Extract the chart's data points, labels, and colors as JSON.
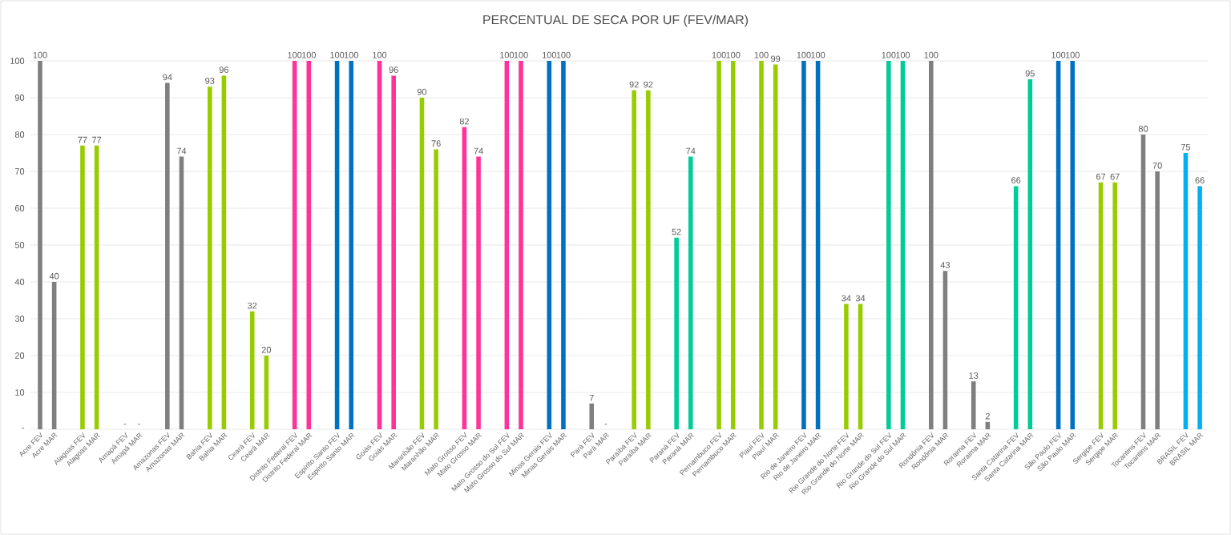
{
  "chart_data": {
    "type": "bar",
    "title": "PERCENTUAL DE SECA POR UF (FEV/MAR)",
    "categories": [
      "Acre FEV",
      "Acre MAR",
      null,
      "Alagoas FEV",
      "Alagoas MAR",
      null,
      "Amapá FEV",
      "Amapá MAR",
      null,
      "Amazonas FEV",
      "Amazonas MAR",
      null,
      "Bahia FEV",
      "Bahia MAR",
      null,
      "Ceará FEV",
      "Ceará MAR",
      null,
      "Distrito Federal FEV",
      "Distrito Federal MAR",
      null,
      "Espírito Santo FEV",
      "Espírito Santo MAR",
      null,
      "Goiás FEV",
      "Goiás MAR",
      null,
      "Maranhão FEV",
      "Maranhão MAR",
      null,
      "Mato Grosso FEV",
      "Mato Grosso MAR",
      null,
      "Mato Grosso do Sul FEV",
      "Mato Grosso do Sul MAR",
      null,
      "Minas Gerais FEV",
      "Minas Gerais MAR",
      null,
      "Pará FEV",
      "Pará MAR",
      null,
      "Paraíba FEV",
      "Paraíba MAR",
      null,
      "Paraná FEV",
      "Paraná MAR",
      null,
      "Pernambuco FEV",
      "Pernambuco MAR",
      null,
      "Piauí FEV",
      "Piauí MAR",
      null,
      "Rio de Janeiro FEV",
      "Rio de Janeiro MAR",
      null,
      "Rio Grande do Norte FEV",
      "Rio Grande do Norte MAR",
      null,
      "Rio Grande do Sul FEV",
      "Rio Grande do Sul MAR",
      null,
      "Rondônia FEV",
      "Rondônia MAR",
      null,
      "Roraima FEV",
      "Roraima MAR",
      null,
      "Santa Catarina FEV",
      "Santa Catarina MAR",
      null,
      "São Paulo FEV",
      "São Paulo MAR",
      null,
      "Sergipe FEV",
      "Sergipe MAR",
      null,
      "Tocantins FEV",
      "Tocantins MAR",
      null,
      "BRASIL FEV",
      "BRASIL MAR"
    ],
    "values": [
      100,
      40,
      null,
      77,
      77,
      null,
      0,
      0,
      null,
      94,
      74,
      null,
      93,
      96,
      null,
      32,
      20,
      null,
      100,
      100,
      null,
      100,
      100,
      null,
      100,
      96,
      null,
      90,
      76,
      null,
      82,
      74,
      null,
      100,
      100,
      null,
      100,
      100,
      null,
      7,
      0,
      null,
      92,
      92,
      null,
      52,
      74,
      null,
      100,
      100,
      null,
      100,
      99,
      null,
      100,
      100,
      null,
      34,
      34,
      null,
      100,
      100,
      null,
      100,
      43,
      null,
      13,
      2,
      null,
      66,
      95,
      null,
      100,
      100,
      null,
      67,
      67,
      null,
      80,
      70,
      null,
      75,
      66
    ],
    "value_labels": [
      "100",
      "40",
      null,
      "77",
      "77",
      null,
      "-",
      "-",
      null,
      "94",
      "74",
      null,
      "93",
      "96",
      null,
      "32",
      "20",
      null,
      "100",
      "100",
      null,
      "100",
      "100",
      null,
      "100",
      "96",
      null,
      "90",
      "76",
      null,
      "82",
      "74",
      null,
      "100",
      "100",
      null,
      "100",
      "100",
      null,
      "7",
      "-",
      null,
      "92",
      "92",
      null,
      "52",
      "74",
      null,
      "100",
      "100",
      null,
      "100",
      "99",
      null,
      "100",
      "100",
      null,
      "34",
      "34",
      null,
      "100",
      "100",
      null,
      "100",
      "43",
      null,
      "13",
      "2",
      null,
      "66",
      "95",
      null,
      "100",
      "100",
      null,
      "67",
      "67",
      null,
      "80",
      "70",
      null,
      "75",
      "66"
    ],
    "colors": [
      "#7f7f7f",
      "#7f7f7f",
      null,
      "#99cc00",
      "#99cc00",
      null,
      "#7f7f7f",
      "#7f7f7f",
      null,
      "#7f7f7f",
      "#7f7f7f",
      null,
      "#99cc00",
      "#99cc00",
      null,
      "#99cc00",
      "#99cc00",
      null,
      "#ff3399",
      "#ff3399",
      null,
      "#0070c0",
      "#0070c0",
      null,
      "#ff3399",
      "#ff3399",
      null,
      "#99cc00",
      "#99cc00",
      null,
      "#ff3399",
      "#ff3399",
      null,
      "#ff3399",
      "#ff3399",
      null,
      "#0070c0",
      "#0070c0",
      null,
      "#7f7f7f",
      "#7f7f7f",
      null,
      "#99cc00",
      "#99cc00",
      null,
      "#00cc99",
      "#00cc99",
      null,
      "#99cc00",
      "#99cc00",
      null,
      "#99cc00",
      "#99cc00",
      null,
      "#0070c0",
      "#0070c0",
      null,
      "#99cc00",
      "#99cc00",
      null,
      "#00cc99",
      "#00cc99",
      null,
      "#7f7f7f",
      "#7f7f7f",
      null,
      "#7f7f7f",
      "#7f7f7f",
      null,
      "#00cc99",
      "#00cc99",
      null,
      "#0070c0",
      "#0070c0",
      null,
      "#99cc00",
      "#99cc00",
      null,
      "#7f7f7f",
      "#7f7f7f",
      null,
      "#00b0f0",
      "#00b0f0"
    ],
    "ylim": [
      0,
      100
    ],
    "yticks": [
      {
        "value": 0,
        "label": "-"
      },
      10,
      20,
      30,
      40,
      50,
      60,
      70,
      80,
      90,
      100
    ],
    "grid": "y"
  }
}
